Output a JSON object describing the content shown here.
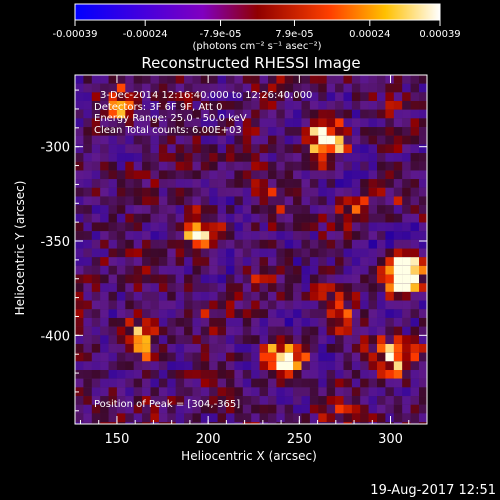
{
  "colorbar": {
    "ticks": [
      {
        "value": -0.00039,
        "label": "-0.00039"
      },
      {
        "value": -0.00024,
        "label": "-0.00024"
      },
      {
        "value": -7.9e-05,
        "label": "-7.9e-05"
      },
      {
        "value": 7.9e-05,
        "label": "7.9e-05"
      },
      {
        "value": 0.00024,
        "label": "0.00024"
      },
      {
        "value": 0.00039,
        "label": "0.00039"
      }
    ],
    "range": [
      -0.00039,
      0.00039
    ],
    "units": "(photons cm⁻² s⁻¹ asec⁻²)"
  },
  "chart_data": {
    "type": "heatmap",
    "title": "Reconstructed RHESSI Image",
    "xlabel": "Heliocentric X (arcsec)",
    "ylabel": "Heliocentric Y (arcsec)",
    "xlim": [
      127,
      320
    ],
    "ylim": [
      -447,
      -262
    ],
    "xticks": [
      150,
      200,
      250,
      300
    ],
    "yticks": [
      -300,
      -350,
      -400
    ],
    "annotations": [
      "3-Dec-2014 12:16:40.000 to 12:26:40.000",
      "Detectors: 3F 6F 9F, Att 0",
      "Energy Range: 25.0 - 50.0 keV",
      "Clean     Total counts: 6.00E+03",
      "Position of Peak = [304,-365]"
    ],
    "peak": {
      "x": 304,
      "y": -365
    },
    "bright_regions": [
      {
        "x": 304,
        "y": -365,
        "intensity": 1.0
      },
      {
        "x": 262,
        "y": -295,
        "intensity": 0.75
      },
      {
        "x": 195,
        "y": -345,
        "intensity": 0.65
      },
      {
        "x": 240,
        "y": -410,
        "intensity": 0.7
      },
      {
        "x": 160,
        "y": -400,
        "intensity": 0.6
      },
      {
        "x": 300,
        "y": -410,
        "intensity": 0.6
      },
      {
        "x": 150,
        "y": -275,
        "intensity": 0.45
      }
    ]
  },
  "footer": {
    "timestamp": "19-Aug-2017 12:51"
  }
}
